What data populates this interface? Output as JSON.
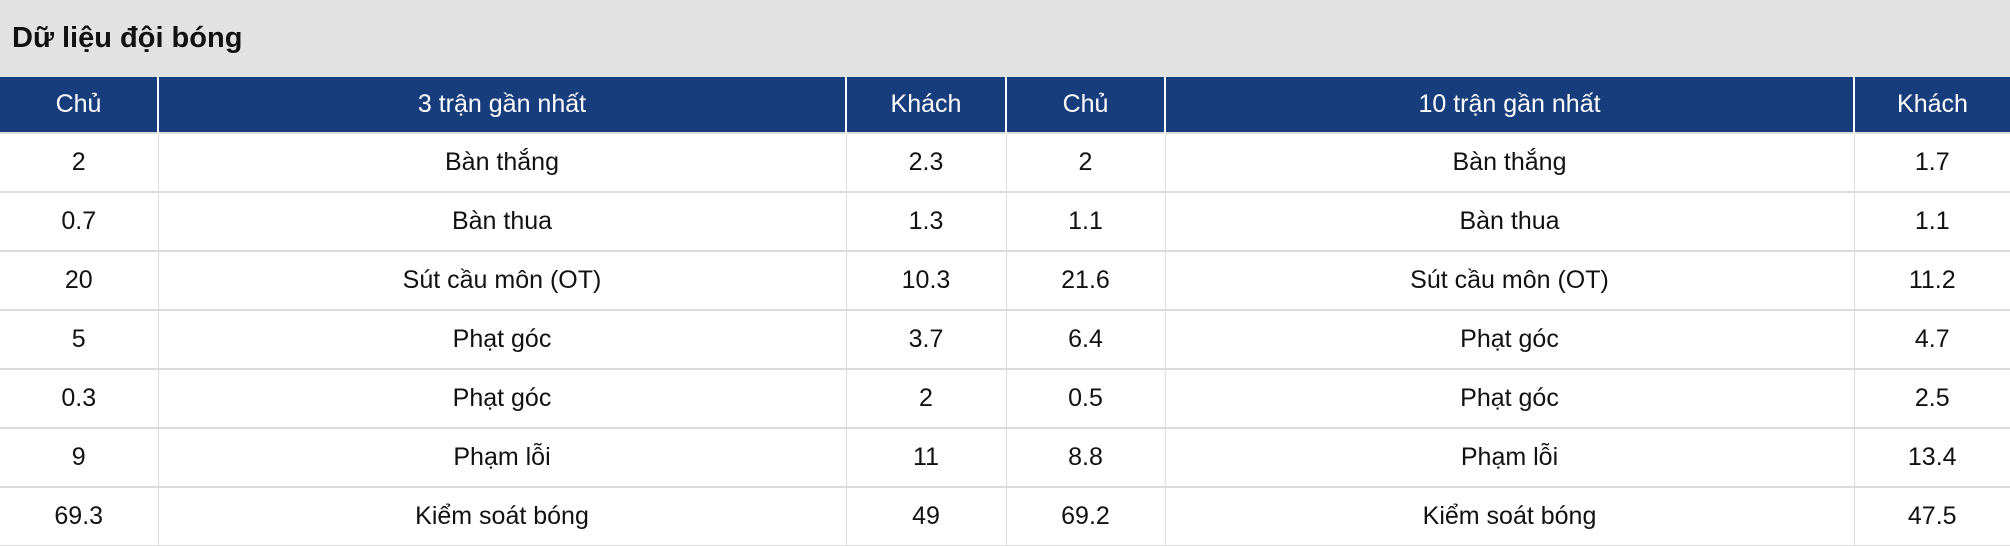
{
  "title": "Dữ liệu đội bóng",
  "headers": [
    "Chủ",
    "3 trận gần nhất",
    "Khách",
    "Chủ",
    "10 trận gần nhất",
    "Khách"
  ],
  "rows": [
    [
      "2",
      "Bàn thắng",
      "2.3",
      "2",
      "Bàn thắng",
      "1.7"
    ],
    [
      "0.7",
      "Bàn thua",
      "1.3",
      "1.1",
      "Bàn thua",
      "1.1"
    ],
    [
      "20",
      "Sút cầu môn (OT)",
      "10.3",
      "21.6",
      "Sút cầu môn (OT)",
      "11.2"
    ],
    [
      "5",
      "Phạt góc",
      "3.7",
      "6.4",
      "Phạt góc",
      "4.7"
    ],
    [
      "0.3",
      "Phạt góc",
      "2",
      "0.5",
      "Phạt góc",
      "2.5"
    ],
    [
      "9",
      "Phạm lỗi",
      "11",
      "8.8",
      "Phạm lỗi",
      "13.4"
    ],
    [
      "69.3",
      "Kiểm soát bóng",
      "49",
      "69.2",
      "Kiểm soát bóng",
      "47.5"
    ]
  ],
  "colors": {
    "header_bg": "#183d7d",
    "title_bg": "#e2e2e2"
  }
}
